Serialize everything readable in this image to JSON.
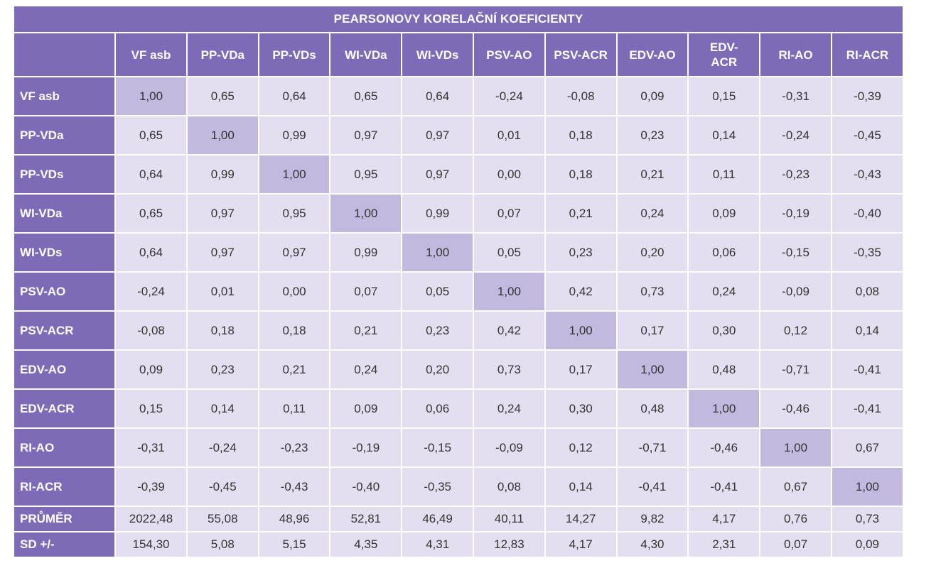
{
  "title": "PEARSONOVY KORELAČNÍ KOEFICIENTY",
  "columns": [
    "VF asb",
    "PP-VDa",
    "PP-VDs",
    "WI-VDa",
    "WI-VDs",
    "PSV-AO",
    "PSV-ACR",
    "EDV-AO",
    "EDV-\nACR",
    "RI-AO",
    "RI-ACR"
  ],
  "rows": [
    {
      "label": "VF asb",
      "values": [
        "1,00",
        "0,65",
        "0,64",
        "0,65",
        "0,64",
        "-0,24",
        "-0,08",
        "0,09",
        "0,15",
        "-0,31",
        "-0,39"
      ]
    },
    {
      "label": "PP-VDa",
      "values": [
        "0,65",
        "1,00",
        "0,99",
        "0,97",
        "0,97",
        "0,01",
        "0,18",
        "0,23",
        "0,14",
        "-0,24",
        "-0,45"
      ]
    },
    {
      "label": "PP-VDs",
      "values": [
        "0,64",
        "0,99",
        "1,00",
        "0,95",
        "0,97",
        "0,00",
        "0,18",
        "0,21",
        "0,11",
        "-0,23",
        "-0,43"
      ]
    },
    {
      "label": "WI-VDa",
      "values": [
        "0,65",
        "0,97",
        "0,95",
        "1,00",
        "0,99",
        "0,07",
        "0,21",
        "0,24",
        "0,09",
        "-0,19",
        "-0,40"
      ]
    },
    {
      "label": "WI-VDs",
      "values": [
        "0,64",
        "0,97",
        "0,97",
        "0,99",
        "1,00",
        "0,05",
        "0,23",
        "0,20",
        "0,06",
        "-0,15",
        "-0,35"
      ]
    },
    {
      "label": "PSV-AO",
      "values": [
        "-0,24",
        "0,01",
        "0,00",
        "0,07",
        "0,05",
        "1,00",
        "0,42",
        "0,73",
        "0,24",
        "-0,09",
        "0,08"
      ]
    },
    {
      "label": "PSV-ACR",
      "values": [
        "-0,08",
        "0,18",
        "0,18",
        "0,21",
        "0,23",
        "0,42",
        "1,00",
        "0,17",
        "0,30",
        "0,12",
        "0,14"
      ]
    },
    {
      "label": "EDV-AO",
      "values": [
        "0,09",
        "0,23",
        "0,21",
        "0,24",
        "0,20",
        "0,73",
        "0,17",
        "1,00",
        "0,48",
        "-0,71",
        "-0,41"
      ]
    },
    {
      "label": "EDV-ACR",
      "values": [
        "0,15",
        "0,14",
        "0,11",
        "0,09",
        "0,06",
        "0,24",
        "0,30",
        "0,48",
        "1,00",
        "-0,46",
        "-0,41"
      ]
    },
    {
      "label": "RI-AO",
      "values": [
        "-0,31",
        "-0,24",
        "-0,23",
        "-0,19",
        "-0,15",
        "-0,09",
        "0,12",
        "-0,71",
        "-0,46",
        "1,00",
        "0,67"
      ]
    },
    {
      "label": "RI-ACR",
      "values": [
        "-0,39",
        "-0,45",
        "-0,43",
        "-0,40",
        "-0,35",
        "0,08",
        "0,14",
        "-0,41",
        "-0,41",
        "0,67",
        "1,00"
      ]
    }
  ],
  "summary": [
    {
      "label": "PRŮMĚR",
      "values": [
        "2022,48",
        "55,08",
        "48,96",
        "52,81",
        "46,49",
        "40,11",
        "14,27",
        "9,82",
        "4,17",
        "0,76",
        "0,73"
      ]
    },
    {
      "label": "SD +/-",
      "values": [
        "154,30",
        "5,08",
        "5,15",
        "4,35",
        "4,31",
        "12,83",
        "4,17",
        "4,30",
        "2,31",
        "0,07",
        "0,09"
      ]
    }
  ],
  "colors": {
    "header_bg": "#7e6bb8",
    "cell_bg": "#e3def0",
    "diagonal_bg": "#c3b8dd",
    "text": "#333333"
  }
}
